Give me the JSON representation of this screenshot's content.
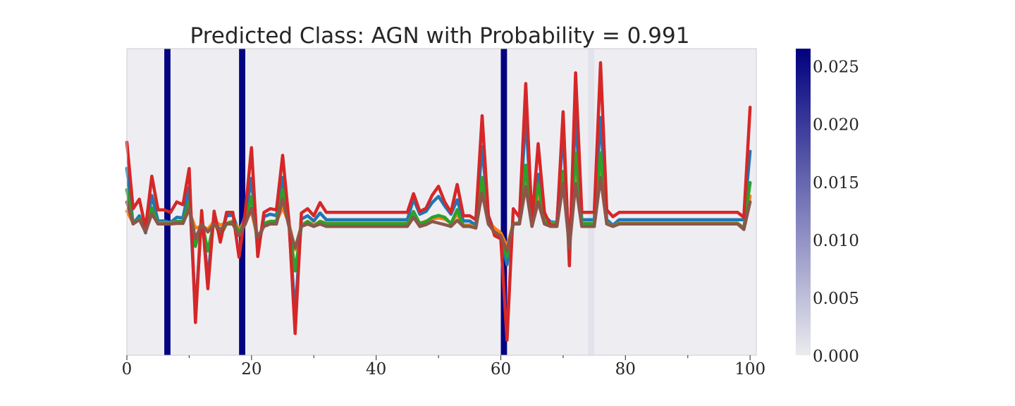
{
  "chart_data": {
    "type": "line",
    "title": "Predicted Class: AGN with Probability = 0.991",
    "xlabel": "",
    "ylabel": "",
    "xlim": [
      0,
      101
    ],
    "xticks": [
      0,
      20,
      40,
      60,
      80,
      100
    ],
    "xtick_labels": [
      "0",
      "20",
      "40",
      "60",
      "80",
      "100"
    ],
    "ylim": [
      0,
      1
    ],
    "yticks_shown": false,
    "grid": false,
    "background": "#eeeef2",
    "highlight_bands": [
      {
        "x_start": 6,
        "x_end": 7,
        "weight": 0.026
      },
      {
        "x_start": 18,
        "x_end": 19,
        "weight": 0.026
      },
      {
        "x_start": 60,
        "x_end": 61,
        "weight": 0.026
      },
      {
        "x_start": 74,
        "x_end": 75,
        "weight": 0.001
      }
    ],
    "colorbar": {
      "min": 0.0,
      "max": 0.0265,
      "ticks": [
        "0.000",
        "0.005",
        "0.010",
        "0.015",
        "0.020",
        "0.025"
      ],
      "tick_values": [
        0.0,
        0.005,
        0.01,
        0.015,
        0.02,
        0.025
      ],
      "color_low": "#ebebef",
      "color_high": "#00007f"
    },
    "series": [
      {
        "color": "#1f77b4",
        "values": [
          0.61,
          0.429,
          0.455,
          0.399,
          0.521,
          0.438,
          0.438,
          0.433,
          0.45,
          0.448,
          0.548,
          0.133,
          0.462,
          0.248,
          0.464,
          0.389,
          0.455,
          0.457,
          0.401,
          0.455,
          0.577,
          0.338,
          0.452,
          0.46,
          0.455,
          0.58,
          0.431,
          0.133,
          0.444,
          0.455,
          0.438,
          0.464,
          0.442,
          0.442,
          0.442,
          0.442,
          0.442,
          0.442,
          0.442,
          0.442,
          0.442,
          0.442,
          0.442,
          0.442,
          0.442,
          0.442,
          0.509,
          0.46,
          0.469,
          0.498,
          0.518,
          0.487,
          0.46,
          0.507,
          0.438,
          0.438,
          0.424,
          0.68,
          0.455,
          0.402,
          0.38,
          0.295,
          0.428,
          0.433,
          0.785,
          0.424,
          0.59,
          0.455,
          0.435,
          0.433,
          0.733,
          0.326,
          0.787,
          0.442,
          0.442,
          0.442,
          0.775,
          0.442,
          0.424,
          0.442,
          0.442,
          0.442,
          0.442,
          0.442,
          0.442,
          0.442,
          0.442,
          0.442,
          0.442,
          0.442,
          0.442,
          0.442,
          0.442,
          0.442,
          0.442,
          0.442,
          0.442,
          0.442,
          0.442,
          0.442,
          0.665
        ]
      },
      {
        "color": "#ff7f0e",
        "values": [
          0.47,
          0.431,
          0.442,
          0.415,
          0.46,
          0.431,
          0.431,
          0.431,
          0.437,
          0.437,
          0.47,
          0.415,
          0.421,
          0.411,
          0.437,
          0.425,
          0.431,
          0.437,
          0.411,
          0.437,
          0.47,
          0.377,
          0.431,
          0.437,
          0.437,
          0.481,
          0.431,
          0.344,
          0.425,
          0.437,
          0.425,
          0.437,
          0.431,
          0.431,
          0.431,
          0.431,
          0.431,
          0.431,
          0.431,
          0.431,
          0.431,
          0.431,
          0.431,
          0.431,
          0.431,
          0.431,
          0.455,
          0.431,
          0.437,
          0.444,
          0.448,
          0.444,
          0.431,
          0.46,
          0.425,
          0.425,
          0.415,
          0.54,
          0.437,
          0.415,
          0.399,
          0.355,
          0.431,
          0.431,
          0.59,
          0.421,
          0.52,
          0.437,
          0.431,
          0.431,
          0.555,
          0.38,
          0.59,
          0.431,
          0.431,
          0.431,
          0.59,
          0.431,
          0.421,
          0.431,
          0.431,
          0.431,
          0.431,
          0.431,
          0.431,
          0.431,
          0.431,
          0.431,
          0.431,
          0.431,
          0.431,
          0.431,
          0.431,
          0.431,
          0.431,
          0.431,
          0.431,
          0.431,
          0.431,
          0.415,
          0.519
        ]
      },
      {
        "color": "#2ca02c",
        "values": [
          0.54,
          0.429,
          0.446,
          0.409,
          0.481,
          0.429,
          0.429,
          0.429,
          0.436,
          0.436,
          0.5,
          0.355,
          0.438,
          0.34,
          0.436,
          0.389,
          0.429,
          0.436,
          0.401,
          0.436,
          0.517,
          0.362,
          0.429,
          0.436,
          0.436,
          0.54,
          0.429,
          0.275,
          0.421,
          0.436,
          0.421,
          0.436,
          0.429,
          0.429,
          0.429,
          0.429,
          0.429,
          0.429,
          0.429,
          0.429,
          0.429,
          0.429,
          0.429,
          0.429,
          0.429,
          0.429,
          0.469,
          0.429,
          0.436,
          0.45,
          0.456,
          0.45,
          0.429,
          0.475,
          0.421,
          0.421,
          0.415,
          0.58,
          0.429,
          0.401,
          0.385,
          0.32,
          0.429,
          0.429,
          0.62,
          0.421,
          0.56,
          0.436,
          0.429,
          0.429,
          0.6,
          0.355,
          0.66,
          0.429,
          0.429,
          0.429,
          0.66,
          0.429,
          0.421,
          0.429,
          0.429,
          0.429,
          0.429,
          0.429,
          0.429,
          0.429,
          0.429,
          0.429,
          0.429,
          0.429,
          0.429,
          0.429,
          0.429,
          0.429,
          0.429,
          0.429,
          0.429,
          0.429,
          0.429,
          0.415,
          0.563
        ]
      },
      {
        "color": "#d62728",
        "values": [
          0.695,
          0.478,
          0.509,
          0.415,
          0.584,
          0.474,
          0.474,
          0.466,
          0.5,
          0.491,
          0.609,
          0.107,
          0.472,
          0.217,
          0.47,
          0.369,
          0.466,
          0.466,
          0.32,
          0.466,
          0.677,
          0.322,
          0.466,
          0.478,
          0.474,
          0.652,
          0.439,
          0.071,
          0.464,
          0.478,
          0.455,
          0.498,
          0.466,
          0.466,
          0.466,
          0.466,
          0.466,
          0.466,
          0.466,
          0.466,
          0.466,
          0.466,
          0.466,
          0.466,
          0.466,
          0.466,
          0.527,
          0.469,
          0.479,
          0.522,
          0.551,
          0.5,
          0.466,
          0.557,
          0.455,
          0.455,
          0.442,
          0.781,
          0.457,
          0.39,
          0.38,
          0.049,
          0.478,
          0.45,
          0.886,
          0.435,
          0.69,
          0.466,
          0.422,
          0.422,
          0.794,
          0.292,
          0.921,
          0.466,
          0.466,
          0.466,
          0.954,
          0.474,
          0.452,
          0.466,
          0.466,
          0.466,
          0.466,
          0.466,
          0.466,
          0.466,
          0.466,
          0.466,
          0.466,
          0.466,
          0.466,
          0.466,
          0.466,
          0.466,
          0.466,
          0.466,
          0.466,
          0.466,
          0.466,
          0.45,
          0.809
        ]
      },
      {
        "color": "#8c564b",
        "values": [
          0.5,
          0.428,
          0.442,
          0.402,
          0.462,
          0.428,
          0.428,
          0.428,
          0.43,
          0.43,
          0.48,
          0.38,
          0.428,
          0.402,
          0.428,
          0.41,
          0.428,
          0.428,
          0.39,
          0.428,
          0.48,
          0.385,
          0.42,
          0.428,
          0.428,
          0.51,
          0.42,
          0.35,
          0.42,
          0.428,
          0.42,
          0.428,
          0.42,
          0.42,
          0.42,
          0.42,
          0.42,
          0.42,
          0.42,
          0.42,
          0.42,
          0.42,
          0.42,
          0.42,
          0.42,
          0.42,
          0.45,
          0.42,
          0.426,
          0.436,
          0.431,
          0.426,
          0.42,
          0.44,
          0.42,
          0.42,
          0.415,
          0.53,
          0.428,
          0.402,
          0.389,
          0.34,
          0.428,
          0.428,
          0.55,
          0.42,
          0.5,
          0.428,
          0.42,
          0.42,
          0.56,
          0.35,
          0.56,
          0.42,
          0.42,
          0.42,
          0.58,
          0.428,
          0.42,
          0.428,
          0.428,
          0.428,
          0.428,
          0.428,
          0.428,
          0.428,
          0.428,
          0.428,
          0.428,
          0.428,
          0.428,
          0.428,
          0.428,
          0.428,
          0.428,
          0.428,
          0.428,
          0.428,
          0.428,
          0.41,
          0.5
        ]
      }
    ]
  }
}
